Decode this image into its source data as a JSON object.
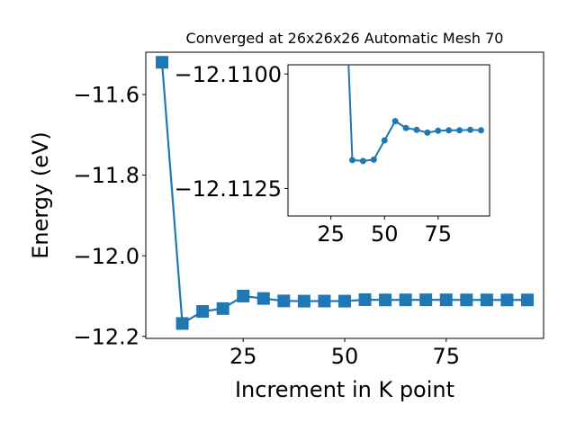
{
  "chart_data": [
    {
      "type": "line",
      "title": "Converged at 26x26x26 Automatic Mesh 70",
      "xlabel": "Increment in K point",
      "ylabel": "Energy (eV)",
      "xlim": [
        1,
        99
      ],
      "ylim": [
        -12.205,
        -11.495
      ],
      "xticks": [
        25,
        50,
        75
      ],
      "yticks": [
        -11.6,
        -11.8,
        -12.0,
        -12.2
      ],
      "ytick_labels": [
        "−11.6",
        "−11.8",
        "−12.0",
        "−12.2"
      ],
      "grid": false,
      "marker": "square",
      "color": "#1f77b4",
      "series": [
        {
          "x": [
            5,
            10,
            15,
            20,
            25,
            30,
            35,
            40,
            45,
            50,
            55,
            60,
            65,
            70,
            75,
            80,
            85,
            90,
            95
          ],
          "y": [
            -11.52,
            -12.168,
            -12.138,
            -12.131,
            -12.1,
            -12.106,
            -12.112,
            -12.1125,
            -12.1124,
            -12.1125,
            -12.109,
            -12.1095,
            -12.1094,
            -12.1093,
            -12.1094,
            -12.1095,
            -12.1095,
            -12.1096,
            -12.1096
          ]
        }
      ]
    },
    {
      "type": "line",
      "title": "",
      "xlabel": "",
      "ylabel": "",
      "xlim": [
        5,
        99
      ],
      "ylim": [
        -12.1131,
        -12.1098
      ],
      "xticks": [
        25,
        50,
        75
      ],
      "yticks": [
        -12.1125,
        -12.11
      ],
      "ytick_labels": [
        "−12.1125",
        "−12.1100"
      ],
      "grid": false,
      "marker": "circle",
      "color": "#1f77b4",
      "series": [
        {
          "x": [
            35,
            40,
            45,
            50,
            55,
            60,
            65,
            70,
            75,
            80,
            85,
            90,
            95
          ],
          "y": [
            -12.11188,
            -12.1119,
            -12.11187,
            -12.11145,
            -12.11103,
            -12.11118,
            -12.11122,
            -12.11128,
            -12.11124,
            -12.11123,
            -12.11123,
            -12.11122,
            -12.11123
          ]
        }
      ]
    }
  ]
}
